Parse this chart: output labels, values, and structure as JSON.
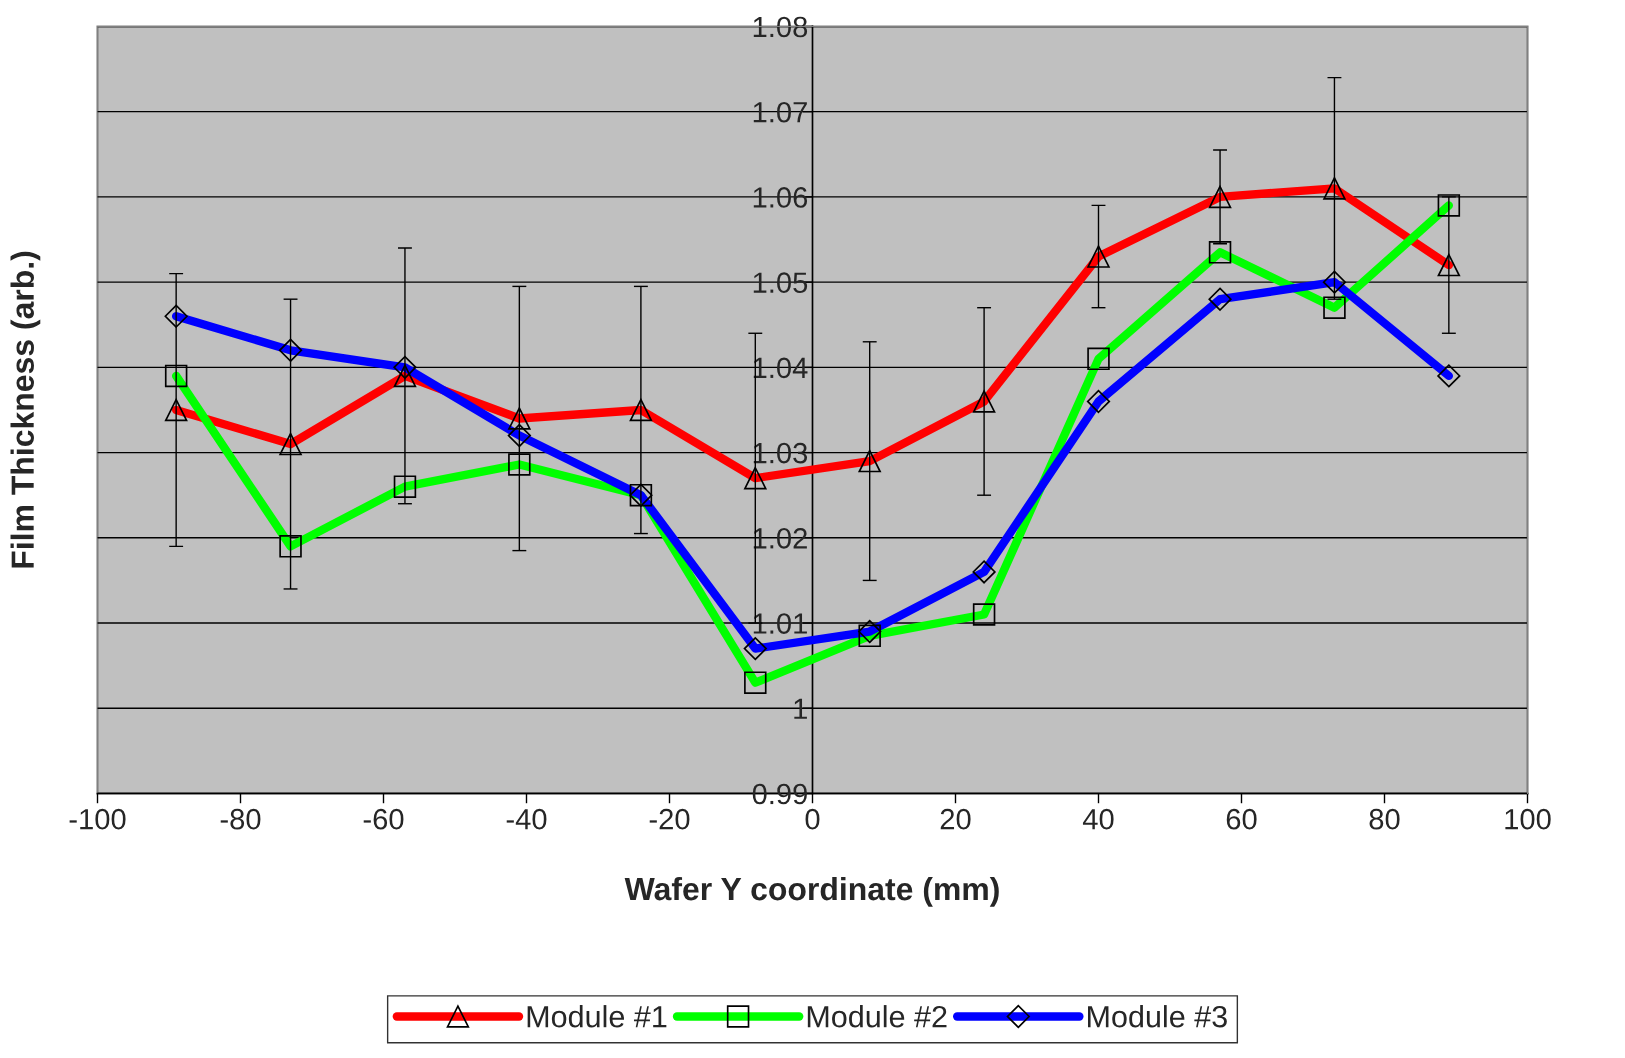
{
  "chart_data": {
    "type": "line",
    "xlabel": "Wafer Y coordinate (mm)",
    "ylabel": "Film Thickness (arb.)",
    "x": [
      -89,
      -73,
      -57,
      -41,
      -24,
      -8,
      8,
      24,
      40,
      57,
      73,
      89
    ],
    "series": [
      {
        "name": "Module #1",
        "color": "#ff0000",
        "marker": "triangle",
        "values": [
          1.035,
          1.031,
          1.039,
          1.034,
          1.035,
          1.027,
          1.029,
          1.036,
          1.053,
          1.06,
          1.061,
          1.052
        ],
        "errors": [
          0.016,
          0.017,
          0.015,
          0.0155,
          0.0145,
          0.017,
          0.014,
          0.011,
          0.006,
          0.0055,
          0.013,
          0.008
        ]
      },
      {
        "name": "Module #2",
        "color": "#00ff00",
        "marker": "square",
        "values": [
          1.039,
          1.019,
          1.026,
          1.0286,
          1.025,
          1.003,
          1.0085,
          1.011,
          1.041,
          1.0535,
          1.047,
          1.059
        ]
      },
      {
        "name": "Module #3",
        "color": "#0000ff",
        "marker": "diamond",
        "values": [
          1.046,
          1.042,
          1.04,
          1.032,
          1.025,
          1.007,
          1.009,
          1.016,
          1.036,
          1.048,
          1.05,
          1.039
        ]
      }
    ],
    "xlim": [
      -100,
      100
    ],
    "xticks": [
      -100,
      -80,
      -60,
      -40,
      -20,
      0,
      20,
      40,
      60,
      80,
      100
    ],
    "ylim": [
      0.99,
      1.08
    ],
    "yticks": [
      0.99,
      1,
      1.01,
      1.02,
      1.03,
      1.04,
      1.05,
      1.06,
      1.07,
      1.08
    ],
    "grid": "y",
    "legend": "bottom",
    "line_style": "solid"
  }
}
